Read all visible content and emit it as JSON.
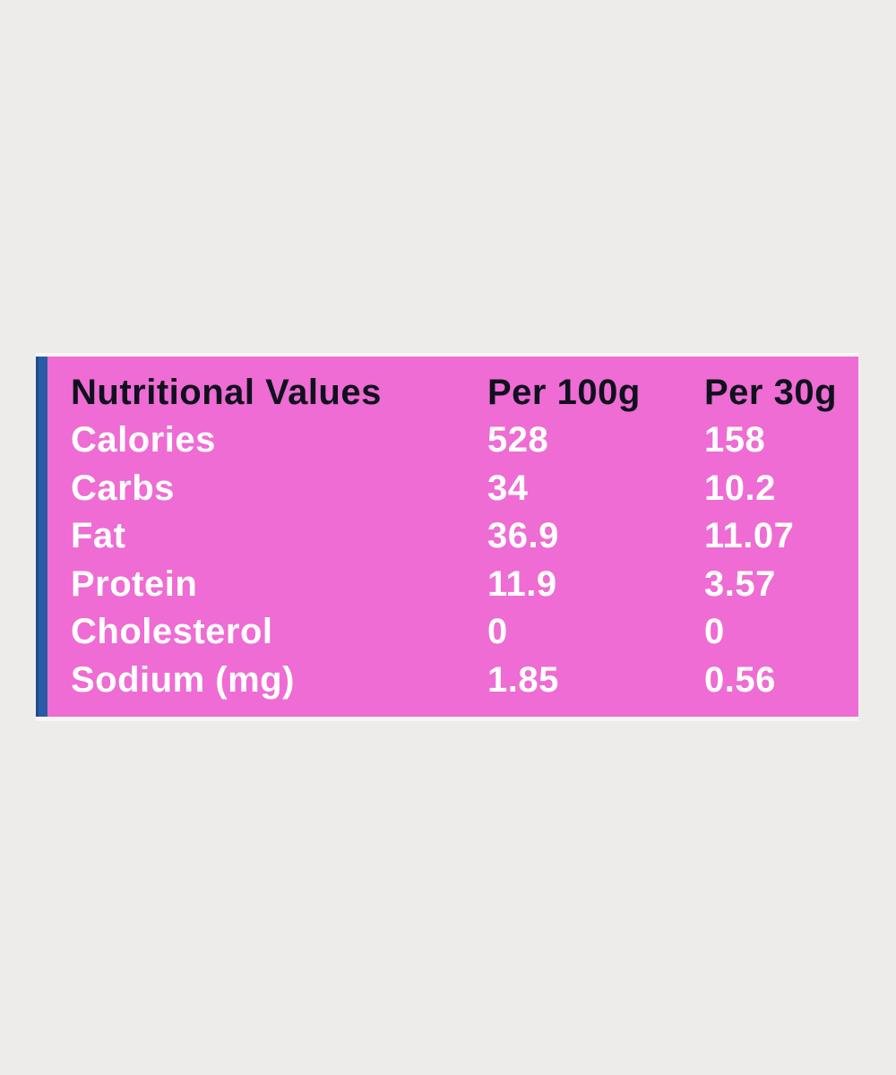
{
  "colors": {
    "page_background": "#edecea",
    "card_background": "#ee6cd3",
    "accent_bar": "#2a5ca5",
    "header_text": "#10101e",
    "row_text": "#ffffff"
  },
  "chart_data": {
    "type": "table",
    "title": "Nutritional Values",
    "columns": [
      "Nutritional Values",
      "Per 100g",
      "Per 30g"
    ],
    "rows": [
      {
        "label": "Calories",
        "per_100g": "528",
        "per_30g": "158"
      },
      {
        "label": "Carbs",
        "per_100g": "34",
        "per_30g": "10.2"
      },
      {
        "label": "Fat",
        "per_100g": "36.9",
        "per_30g": "11.07"
      },
      {
        "label": "Protein",
        "per_100g": "11.9",
        "per_30g": "3.57"
      },
      {
        "label": "Cholesterol",
        "per_100g": "0",
        "per_30g": "0"
      },
      {
        "label": "Sodium (mg)",
        "per_100g": "1.85",
        "per_30g": "0.56"
      }
    ]
  }
}
